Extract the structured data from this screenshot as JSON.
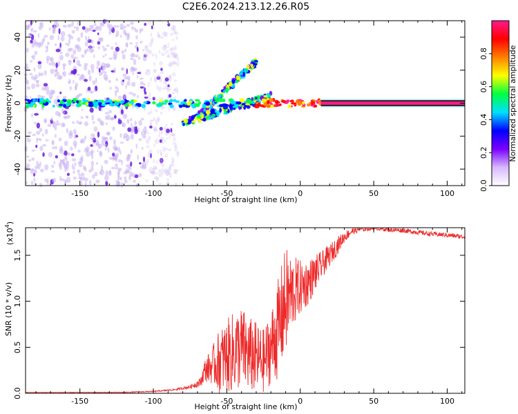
{
  "figure": {
    "title": "C2E6.2024.213.12.26.R05"
  },
  "colors": {
    "background": "#ffffff",
    "axis": "#000000",
    "snr_line": "#ee2a2a",
    "dot_light": "#c9b3f2",
    "dot_dark": "#6a1fe0",
    "center_band": "#b8f0f0"
  },
  "chart_data": [
    {
      "type": "heatmap",
      "xlabel": "Height of straight line (km)",
      "ylabel": "Frequency (Hz)",
      "xlim": [
        -187,
        112
      ],
      "ylim": [
        -50,
        50
      ],
      "x_ticks": [
        -150,
        -100,
        -50,
        0,
        50,
        100
      ],
      "y_ticks": [
        -40,
        -20,
        0,
        20,
        40
      ],
      "colorbar": {
        "label": "Normalized spectral amplitude",
        "range": [
          0,
          1
        ],
        "ticks": [
          "0.0",
          "0.2",
          "0.4",
          "0.6",
          "0.8"
        ],
        "colormap": [
          "#ffffff",
          "#d6b8ff",
          "#7a00ff",
          "#0000ff",
          "#00e0ff",
          "#00ff40",
          "#ffff00",
          "#ff8000",
          "#ff0000",
          "#ff1a8c"
        ]
      },
      "features": [
        {
          "name": "carrier",
          "x_range": [
            -187,
            112
          ],
          "freq_hz": 0,
          "amplitude_left": 0.3,
          "amplitude_right": 1.0
        },
        {
          "name": "upper-branch",
          "x_start": -70,
          "x_end": -30,
          "freq_start_hz": -8,
          "freq_end_hz": 25
        },
        {
          "name": "lower-branch",
          "x_start": -80,
          "x_end": -20,
          "freq_start_hz": -12,
          "freq_end_hz": 4
        },
        {
          "name": "scattered-noise",
          "x_range": [
            -187,
            -95
          ],
          "freq_range_hz": [
            -50,
            50
          ]
        }
      ]
    },
    {
      "type": "line",
      "xlabel": "Height of straight line (km)",
      "ylabel": "SNR (10 * v/v)",
      "y_multiplier": "(x10",
      "y_multiplier_exp": "4",
      "xlim": [
        -187,
        112
      ],
      "ylim": [
        0,
        1.8
      ],
      "x_ticks": [
        -150,
        -100,
        -50,
        0,
        50,
        100
      ],
      "y_ticks": [
        0.0,
        0.5,
        1.0,
        1.5
      ],
      "y_tick_labels": [
        "0.0",
        "0.5",
        "1.0",
        "1.5"
      ],
      "series": [
        {
          "x": [
            -187,
            -150,
            -120,
            -100,
            -85,
            -75,
            -68,
            -65,
            -60,
            -55,
            -50,
            -45,
            -40,
            -35,
            -30,
            -25,
            -20,
            -15,
            -10,
            -5,
            0,
            5,
            10,
            15,
            20,
            25,
            30,
            35,
            40,
            50,
            60,
            70,
            80,
            90,
            100,
            112
          ],
          "y": [
            0.01,
            0.01,
            0.01,
            0.02,
            0.04,
            0.07,
            0.12,
            0.25,
            0.3,
            0.35,
            0.4,
            0.45,
            0.5,
            0.42,
            0.38,
            0.35,
            0.5,
            0.7,
            1.0,
            1.1,
            1.15,
            1.2,
            1.3,
            1.4,
            1.5,
            1.6,
            1.7,
            1.76,
            1.78,
            1.8,
            1.78,
            1.77,
            1.75,
            1.73,
            1.72,
            1.7
          ],
          "noise": [
            0.002,
            0.003,
            0.004,
            0.006,
            0.01,
            0.02,
            0.05,
            0.12,
            0.2,
            0.35,
            0.4,
            0.45,
            0.45,
            0.42,
            0.4,
            0.35,
            0.4,
            0.55,
            0.6,
            0.4,
            0.3,
            0.25,
            0.2,
            0.15,
            0.12,
            0.1,
            0.06,
            0.04,
            0.03,
            0.025,
            0.025,
            0.025,
            0.025,
            0.025,
            0.025,
            0.025
          ]
        }
      ]
    }
  ]
}
